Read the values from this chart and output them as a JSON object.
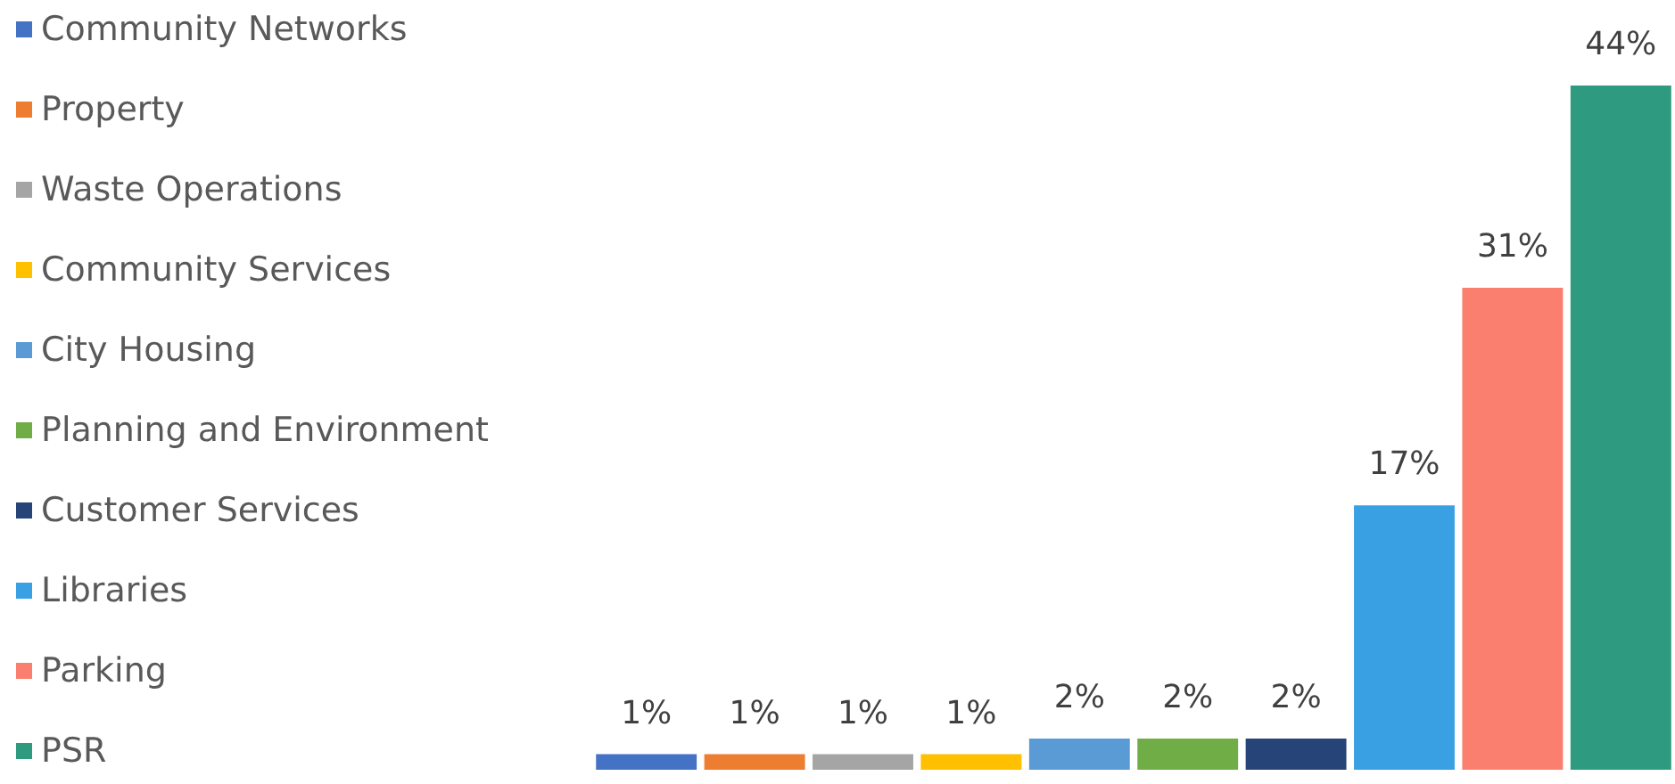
{
  "chart_data": {
    "type": "bar",
    "stacked": true,
    "legend": "left",
    "categories": [
      null,
      null,
      null,
      null,
      null,
      null,
      null,
      null,
      null,
      null
    ],
    "series": [
      {
        "name": "Community Networks",
        "color": "#4472c4",
        "values": [
          1,
          null,
          null,
          null,
          null,
          null,
          null,
          null,
          null,
          null
        ],
        "value_labels": [
          "1%",
          null,
          null,
          null,
          null,
          null,
          null,
          null,
          null,
          null
        ]
      },
      {
        "name": "Property",
        "color": "#ed7d31",
        "values": [
          null,
          1,
          null,
          null,
          null,
          null,
          null,
          null,
          null,
          null
        ],
        "value_labels": [
          null,
          "1%",
          null,
          null,
          null,
          null,
          null,
          null,
          null,
          null
        ]
      },
      {
        "name": "Waste Operations",
        "color": "#a5a5a5",
        "values": [
          null,
          null,
          1,
          null,
          null,
          null,
          null,
          null,
          null,
          null
        ],
        "value_labels": [
          null,
          null,
          "1%",
          null,
          null,
          null,
          null,
          null,
          null,
          null
        ]
      },
      {
        "name": "Community Services",
        "color": "#ffc000",
        "values": [
          null,
          null,
          null,
          1,
          null,
          null,
          null,
          null,
          null,
          null
        ],
        "value_labels": [
          null,
          null,
          null,
          "1%",
          null,
          null,
          null,
          null,
          null,
          null
        ]
      },
      {
        "name": "City Housing",
        "color": "#5b9bd5",
        "values": [
          null,
          null,
          null,
          null,
          2,
          null,
          null,
          null,
          null,
          null
        ],
        "value_labels": [
          null,
          null,
          null,
          null,
          "2%",
          null,
          null,
          null,
          null,
          null
        ]
      },
      {
        "name": "Planning and Environment",
        "color": "#70ad47",
        "values": [
          null,
          null,
          null,
          null,
          null,
          2,
          null,
          null,
          null,
          null
        ],
        "value_labels": [
          null,
          null,
          null,
          null,
          null,
          "2%",
          null,
          null,
          null,
          null
        ]
      },
      {
        "name": "Customer Services",
        "color": "#264478",
        "values": [
          null,
          null,
          null,
          null,
          null,
          null,
          2,
          null,
          null,
          null
        ],
        "value_labels": [
          null,
          null,
          null,
          null,
          null,
          null,
          "2%",
          null,
          null,
          null
        ]
      },
      {
        "name": "Libraries",
        "color": "#3aa0e4",
        "values": [
          null,
          null,
          null,
          null,
          null,
          null,
          null,
          17,
          null,
          null
        ],
        "value_labels": [
          null,
          null,
          null,
          null,
          null,
          null,
          null,
          "17%",
          null,
          null
        ]
      },
      {
        "name": "Parking",
        "color": "#fa7f6e",
        "values": [
          null,
          null,
          null,
          null,
          null,
          null,
          null,
          null,
          31,
          null
        ],
        "value_labels": [
          null,
          null,
          null,
          null,
          null,
          null,
          null,
          null,
          "31%",
          null
        ]
      },
      {
        "name": "PSR",
        "color": "#2e9a80",
        "values": [
          null,
          null,
          null,
          null,
          null,
          null,
          null,
          null,
          null,
          44
        ],
        "value_labels": [
          null,
          null,
          null,
          null,
          null,
          null,
          null,
          null,
          null,
          "44%"
        ]
      }
    ]
  }
}
